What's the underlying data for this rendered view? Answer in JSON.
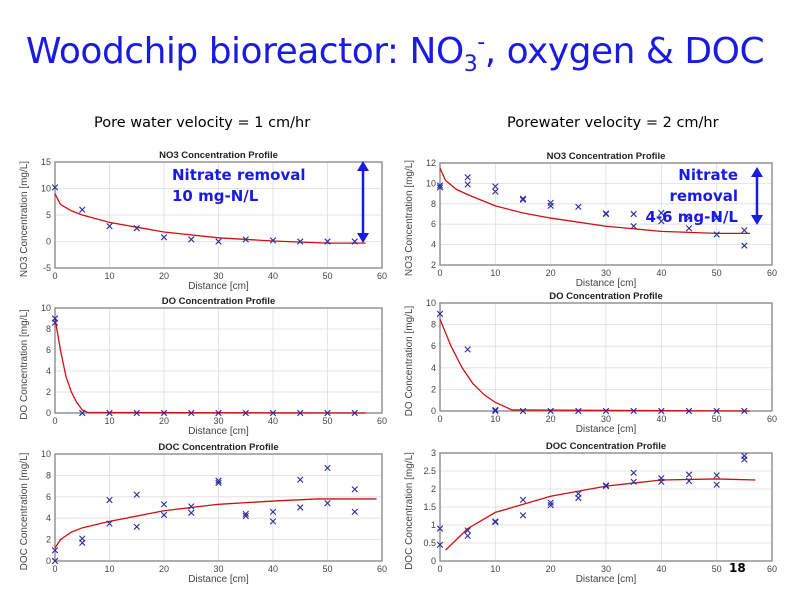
{
  "title": {
    "main": "Woodchip bioreactor: NO",
    "sub": "3",
    "sup": "-",
    "rest": ", oxygen & DOC"
  },
  "left_heading": "Pore water velocity = 1 cm/hr",
  "right_heading": "Porewater velocity = 2 cm/hr",
  "annotations": {
    "left": {
      "line1": "Nitrate removal",
      "line2": "10 mg-N/L"
    },
    "right": {
      "line1": "Nitrate removal",
      "line2": "4-6 mg-N/L"
    }
  },
  "page_number": "18",
  "colors": {
    "title": "#1a1ae6",
    "marker": "#2b2b9e",
    "fit": "#d01010",
    "arrow": "#1a1ae6"
  },
  "chart_data": [
    {
      "id": "l-no3",
      "type": "scatter",
      "title": "NO3 Concentration Profile",
      "xlabel": "Distance [cm]",
      "ylabel": "NO3 Concentration [mg/L]",
      "xlim": [
        0,
        60
      ],
      "ylim": [
        -5,
        15
      ],
      "xticks": [
        "0",
        "10",
        "20",
        "30",
        "40",
        "50",
        "60"
      ],
      "yticks": [
        "-5",
        "0",
        "5",
        "10",
        "15"
      ],
      "grid": true,
      "points": [
        [
          0,
          10.2
        ],
        [
          5,
          6
        ],
        [
          10,
          2.9
        ],
        [
          15,
          2.5
        ],
        [
          20,
          0.8
        ],
        [
          25,
          0.4
        ],
        [
          30,
          0
        ],
        [
          35,
          0.4
        ],
        [
          40,
          0.2
        ],
        [
          45,
          0
        ],
        [
          50,
          0
        ],
        [
          55,
          0
        ]
      ],
      "fit": [
        [
          0,
          9
        ],
        [
          1,
          7
        ],
        [
          3,
          5.8
        ],
        [
          5,
          5
        ],
        [
          10,
          3.6
        ],
        [
          15,
          2.7
        ],
        [
          20,
          1.8
        ],
        [
          30,
          0.7
        ],
        [
          40,
          0.1
        ],
        [
          50,
          -0.3
        ],
        [
          57,
          -0.3
        ]
      ]
    },
    {
      "id": "l-do",
      "type": "scatter",
      "title": "DO Concentration Profile",
      "xlabel": "Distance [cm]",
      "ylabel": "DO Concentration [mg/L]",
      "xlim": [
        0,
        60
      ],
      "ylim": [
        0,
        10
      ],
      "xticks": [
        "0",
        "10",
        "20",
        "30",
        "40",
        "50",
        "60"
      ],
      "yticks": [
        "0",
        "2",
        "4",
        "6",
        "8",
        "10"
      ],
      "grid": true,
      "points": [
        [
          0,
          9
        ],
        [
          0,
          8.6
        ],
        [
          5,
          0
        ],
        [
          10,
          0
        ],
        [
          15,
          0
        ],
        [
          20,
          0
        ],
        [
          25,
          0
        ],
        [
          30,
          0
        ],
        [
          35,
          0
        ],
        [
          40,
          0
        ],
        [
          45,
          0
        ],
        [
          50,
          0
        ],
        [
          55,
          0
        ]
      ],
      "fit": [
        [
          0,
          9
        ],
        [
          1,
          6
        ],
        [
          2,
          3.5
        ],
        [
          3,
          2
        ],
        [
          4,
          1
        ],
        [
          5,
          0.3
        ],
        [
          6,
          0.05
        ],
        [
          57,
          0
        ]
      ]
    },
    {
      "id": "l-doc",
      "type": "scatter",
      "title": "DOC Concentration Profile",
      "xlabel": "Distance [cm]",
      "ylabel": "DOC Concentration [mg/L]",
      "xlim": [
        0,
        60
      ],
      "ylim": [
        0,
        10
      ],
      "xticks": [
        "0",
        "10",
        "20",
        "30",
        "40",
        "50",
        "60"
      ],
      "yticks": [
        "0",
        "2",
        "4",
        "6",
        "8",
        "10"
      ],
      "grid": true,
      "points": [
        [
          0,
          0
        ],
        [
          0,
          1
        ],
        [
          5,
          1.7
        ],
        [
          5,
          2.1
        ],
        [
          10,
          5.7
        ],
        [
          10,
          3.5
        ],
        [
          15,
          6.2
        ],
        [
          15,
          3.2
        ],
        [
          20,
          5.3
        ],
        [
          20,
          4.3
        ],
        [
          25,
          5.1
        ],
        [
          25,
          4.5
        ],
        [
          30,
          7.5
        ],
        [
          30,
          7.3
        ],
        [
          35,
          4.4
        ],
        [
          35,
          4.2
        ],
        [
          40,
          4.6
        ],
        [
          40,
          3.7
        ],
        [
          45,
          7.6
        ],
        [
          45,
          5
        ],
        [
          50,
          8.7
        ],
        [
          50,
          5.4
        ],
        [
          55,
          6.7
        ],
        [
          55,
          4.6
        ]
      ],
      "fit": [
        [
          0,
          1.2
        ],
        [
          1,
          2
        ],
        [
          3,
          2.7
        ],
        [
          5,
          3.1
        ],
        [
          10,
          3.7
        ],
        [
          20,
          4.7
        ],
        [
          30,
          5.3
        ],
        [
          40,
          5.6
        ],
        [
          48,
          5.8
        ],
        [
          59,
          5.8
        ]
      ]
    },
    {
      "id": "r-no3",
      "type": "scatter",
      "title": "NO3 Concentration Profile",
      "xlabel": "Distance [cm]",
      "ylabel": "NO3 Concentration [mg/L]",
      "xlim": [
        0,
        60
      ],
      "ylim": [
        2,
        12
      ],
      "xticks": [
        "0",
        "10",
        "20",
        "30",
        "40",
        "50",
        "60"
      ],
      "yticks": [
        "2",
        "4",
        "6",
        "8",
        "10",
        "12"
      ],
      "grid": true,
      "points": [
        [
          0,
          9.8
        ],
        [
          0,
          9.6
        ],
        [
          5,
          10.6
        ],
        [
          5,
          9.9
        ],
        [
          10,
          9.7
        ],
        [
          10,
          9.2
        ],
        [
          15,
          8.5
        ],
        [
          15,
          8.4
        ],
        [
          20,
          8.1
        ],
        [
          20,
          7.8
        ],
        [
          25,
          7.7
        ],
        [
          30,
          7
        ],
        [
          30,
          7.05
        ],
        [
          35,
          7
        ],
        [
          35,
          5.8
        ],
        [
          40,
          7.1
        ],
        [
          40,
          6.3
        ],
        [
          45,
          6.6
        ],
        [
          45,
          5.6
        ],
        [
          50,
          6.6
        ],
        [
          50,
          5
        ],
        [
          55,
          5.4
        ],
        [
          55,
          3.9
        ]
      ],
      "fit": [
        [
          0,
          11.5
        ],
        [
          1,
          10.3
        ],
        [
          3,
          9.4
        ],
        [
          5,
          8.9
        ],
        [
          10,
          7.8
        ],
        [
          15,
          7.1
        ],
        [
          20,
          6.6
        ],
        [
          30,
          5.8
        ],
        [
          40,
          5.3
        ],
        [
          50,
          5.1
        ],
        [
          56,
          5.1
        ]
      ]
    },
    {
      "id": "r-do",
      "type": "scatter",
      "title": "DO Concentration Profile",
      "xlabel": "Distance [cm]",
      "ylabel": "DO Concentration [mg/L]",
      "xlim": [
        0,
        60
      ],
      "ylim": [
        0,
        10
      ],
      "xticks": [
        "0",
        "10",
        "20",
        "30",
        "40",
        "50",
        "60"
      ],
      "yticks": [
        "0",
        "2",
        "4",
        "6",
        "8",
        "10"
      ],
      "grid": true,
      "points": [
        [
          0,
          9
        ],
        [
          5,
          5.7
        ],
        [
          10,
          0.1
        ],
        [
          10,
          0
        ],
        [
          15,
          0
        ],
        [
          20,
          0
        ],
        [
          25,
          0
        ],
        [
          30,
          0
        ],
        [
          35,
          0
        ],
        [
          40,
          0
        ],
        [
          45,
          0
        ],
        [
          50,
          0
        ],
        [
          55,
          0
        ]
      ],
      "fit": [
        [
          0,
          8.5
        ],
        [
          2,
          6
        ],
        [
          4,
          4
        ],
        [
          6,
          2.5
        ],
        [
          8,
          1.5
        ],
        [
          10,
          0.8
        ],
        [
          13,
          0.1
        ],
        [
          56,
          0
        ]
      ]
    },
    {
      "id": "r-doc",
      "type": "scatter",
      "title": "DOC Concentration Profile",
      "xlabel": "Distance [cm]",
      "ylabel": "DOC Concentration [mg/L]",
      "xlim": [
        0,
        60
      ],
      "ylim": [
        0,
        3
      ],
      "xticks": [
        "0",
        "10",
        "20",
        "30",
        "40",
        "50",
        "60"
      ],
      "yticks": [
        "0",
        "0.5",
        "1",
        "1.5",
        "2",
        "2.5",
        "3"
      ],
      "grid": true,
      "points": [
        [
          0,
          0.9
        ],
        [
          0,
          0.45
        ],
        [
          5,
          0.85
        ],
        [
          5,
          0.7
        ],
        [
          10,
          1.1
        ],
        [
          10,
          1.08
        ],
        [
          15,
          1.7
        ],
        [
          15,
          1.27
        ],
        [
          20,
          1.62
        ],
        [
          20,
          1.55
        ],
        [
          25,
          1.87
        ],
        [
          25,
          1.75
        ],
        [
          30,
          2.1
        ],
        [
          30,
          2.08
        ],
        [
          35,
          2.45
        ],
        [
          35,
          2.2
        ],
        [
          40,
          2.3
        ],
        [
          40,
          2.2
        ],
        [
          45,
          2.4
        ],
        [
          45,
          2.22
        ],
        [
          50,
          2.38
        ],
        [
          50,
          2.12
        ],
        [
          55,
          2.92
        ],
        [
          55,
          2.82
        ]
      ],
      "fit": [
        [
          1,
          0.3
        ],
        [
          3,
          0.6
        ],
        [
          5,
          0.9
        ],
        [
          10,
          1.35
        ],
        [
          20,
          1.8
        ],
        [
          30,
          2.08
        ],
        [
          40,
          2.25
        ],
        [
          50,
          2.28
        ],
        [
          57,
          2.25
        ]
      ]
    }
  ]
}
